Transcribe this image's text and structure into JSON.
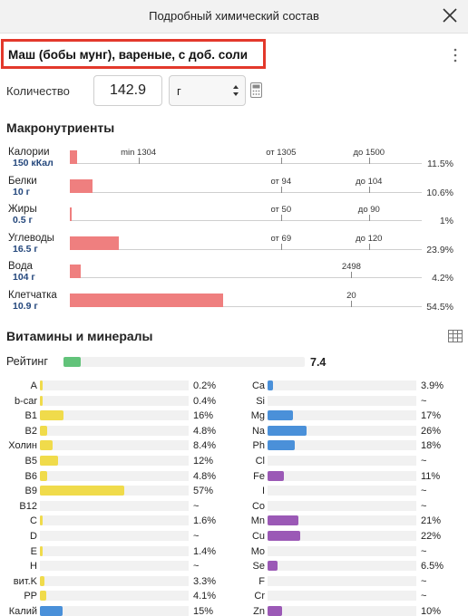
{
  "header": {
    "title": "Подробный химический состав"
  },
  "food": {
    "name": "Маш (бобы мунг), вареные, с доб. соли"
  },
  "quantity": {
    "label": "Количество",
    "value": "142.9",
    "unit": "г"
  },
  "macros": {
    "title": "Макронутриенты",
    "items": [
      {
        "name": "Калории",
        "value": "150 кКал",
        "bar_pct": 2,
        "pct_label": "11.5%",
        "markers": [
          {
            "label": "min 1304",
            "pos": 19.5
          },
          {
            "label": "от 1305",
            "pos": 60
          },
          {
            "label": "до 1500",
            "pos": 85
          }
        ]
      },
      {
        "name": "Белки",
        "value": "10 г",
        "bar_pct": 6.5,
        "pct_label": "10.6%",
        "markers": [
          {
            "label": "от 94",
            "pos": 60
          },
          {
            "label": "до 104",
            "pos": 85
          }
        ]
      },
      {
        "name": "Жиры",
        "value": "0.5 г",
        "bar_pct": 0.5,
        "pct_label": "1%",
        "markers": [
          {
            "label": "от 50",
            "pos": 60
          },
          {
            "label": "до 90",
            "pos": 85
          }
        ]
      },
      {
        "name": "Углеводы",
        "value": "16.5 г",
        "bar_pct": 14,
        "pct_label": "23.9%",
        "markers": [
          {
            "label": "от 69",
            "pos": 60
          },
          {
            "label": "до 120",
            "pos": 85
          }
        ]
      },
      {
        "name": "Вода",
        "value": "104 г",
        "bar_pct": 3,
        "pct_label": "4.2%",
        "markers": [
          {
            "label": "2498",
            "pos": 80
          }
        ]
      },
      {
        "name": "Клетчатка",
        "value": "10.9 г",
        "bar_pct": 43.5,
        "pct_label": "54.5%",
        "markers": [
          {
            "label": "20",
            "pos": 80
          }
        ]
      }
    ]
  },
  "vitamins": {
    "title": "Витамины и минералы",
    "rating": {
      "label": "Рейтинг",
      "value": "7.4",
      "fill_pct": 7
    },
    "left": [
      {
        "name": "A",
        "pct": "0.2%",
        "fill_pct": 0.3,
        "color": "#f0db4b"
      },
      {
        "name": "b-car",
        "pct": "0.4%",
        "fill_pct": 0.3,
        "color": "#f0db4b"
      },
      {
        "name": "B1",
        "pct": "16%",
        "fill_pct": 16,
        "color": "#f0db4b"
      },
      {
        "name": "B2",
        "pct": "4.8%",
        "fill_pct": 4.8,
        "color": "#f0db4b"
      },
      {
        "name": "Холин",
        "pct": "8.4%",
        "fill_pct": 8.4,
        "color": "#f0db4b"
      },
      {
        "name": "B5",
        "pct": "12%",
        "fill_pct": 12,
        "color": "#f0db4b"
      },
      {
        "name": "B6",
        "pct": "4.8%",
        "fill_pct": 4.8,
        "color": "#f0db4b"
      },
      {
        "name": "B9",
        "pct": "57%",
        "fill_pct": 57,
        "color": "#f0db4b"
      },
      {
        "name": "B12",
        "pct": "~",
        "fill_pct": 0,
        "color": "#f0db4b"
      },
      {
        "name": "C",
        "pct": "1.6%",
        "fill_pct": 1.6,
        "color": "#f0db4b"
      },
      {
        "name": "D",
        "pct": "~",
        "fill_pct": 0,
        "color": "#f0db4b"
      },
      {
        "name": "E",
        "pct": "1.4%",
        "fill_pct": 1.4,
        "color": "#f0db4b"
      },
      {
        "name": "H",
        "pct": "~",
        "fill_pct": 0,
        "color": "#f0db4b"
      },
      {
        "name": "вит.K",
        "pct": "3.3%",
        "fill_pct": 3.3,
        "color": "#f0db4b"
      },
      {
        "name": "PP",
        "pct": "4.1%",
        "fill_pct": 4.1,
        "color": "#f0db4b"
      },
      {
        "name": "Калий",
        "pct": "15%",
        "fill_pct": 15,
        "color": "#4a90d9"
      }
    ],
    "right": [
      {
        "name": "Ca",
        "pct": "3.9%",
        "fill_pct": 3.9,
        "color": "#4a90d9"
      },
      {
        "name": "Si",
        "pct": "~",
        "fill_pct": 0,
        "color": "#4a90d9"
      },
      {
        "name": "Mg",
        "pct": "17%",
        "fill_pct": 17,
        "color": "#4a90d9"
      },
      {
        "name": "Na",
        "pct": "26%",
        "fill_pct": 26,
        "color": "#4a90d9"
      },
      {
        "name": "Ph",
        "pct": "18%",
        "fill_pct": 18,
        "color": "#4a90d9"
      },
      {
        "name": "Cl",
        "pct": "~",
        "fill_pct": 0,
        "color": "#4a90d9"
      },
      {
        "name": "Fe",
        "pct": "11%",
        "fill_pct": 11,
        "color": "#9b59b6"
      },
      {
        "name": "I",
        "pct": "~",
        "fill_pct": 0,
        "color": "#9b59b6"
      },
      {
        "name": "Co",
        "pct": "~",
        "fill_pct": 0,
        "color": "#9b59b6"
      },
      {
        "name": "Mn",
        "pct": "21%",
        "fill_pct": 21,
        "color": "#9b59b6"
      },
      {
        "name": "Cu",
        "pct": "22%",
        "fill_pct": 22,
        "color": "#9b59b6"
      },
      {
        "name": "Mo",
        "pct": "~",
        "fill_pct": 0,
        "color": "#9b59b6"
      },
      {
        "name": "Se",
        "pct": "6.5%",
        "fill_pct": 6.5,
        "color": "#9b59b6"
      },
      {
        "name": "F",
        "pct": "~",
        "fill_pct": 0,
        "color": "#9b59b6"
      },
      {
        "name": "Cr",
        "pct": "~",
        "fill_pct": 0,
        "color": "#9b59b6"
      },
      {
        "name": "Zn",
        "pct": "10%",
        "fill_pct": 10,
        "color": "#9b59b6"
      }
    ]
  }
}
